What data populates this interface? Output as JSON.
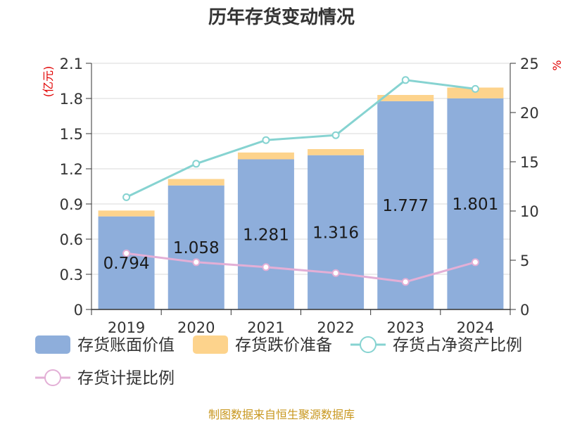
{
  "chart_data": {
    "type": "bar",
    "title": "历年存货变动情况",
    "left_axis": {
      "unit": "(亿元)",
      "ylim": [
        0,
        2.1
      ],
      "ticks": [
        "0",
        "0.3",
        "0.6",
        "0.9",
        "1.2",
        "1.5",
        "1.8",
        "2.1"
      ]
    },
    "right_axis": {
      "unit": "%",
      "ylim": [
        0,
        25
      ],
      "ticks": [
        "0",
        "5",
        "10",
        "15",
        "20",
        "25"
      ]
    },
    "categories": [
      "2019",
      "2020",
      "2021",
      "2022",
      "2023",
      "2024"
    ],
    "series": [
      {
        "name": "存货账面价值",
        "type": "bar",
        "stack": "inv",
        "axis": "left",
        "color": "#8eaedb",
        "values": [
          0.794,
          1.058,
          1.281,
          1.316,
          1.777,
          1.801
        ],
        "labels": [
          "0.794",
          "1.058",
          "1.281",
          "1.316",
          "1.777",
          "1.801"
        ]
      },
      {
        "name": "存货跌价准备",
        "type": "bar",
        "stack": "inv",
        "axis": "left",
        "color": "#fdd38c",
        "values": [
          0.05,
          0.055,
          0.058,
          0.052,
          0.053,
          0.092
        ]
      },
      {
        "name": "存货占净资产比例",
        "type": "line",
        "axis": "right",
        "color": "#86d3d1",
        "values": [
          11.4,
          14.8,
          17.2,
          17.7,
          23.3,
          22.4
        ]
      },
      {
        "name": "存货计提比例",
        "type": "line",
        "axis": "right",
        "color": "#e3afd6",
        "values": [
          5.7,
          4.8,
          4.3,
          3.7,
          2.8,
          4.8
        ]
      }
    ],
    "grid": true,
    "legend_position": "bottom"
  },
  "footer": {
    "source": "制图数据来自恒生聚源数据库"
  }
}
